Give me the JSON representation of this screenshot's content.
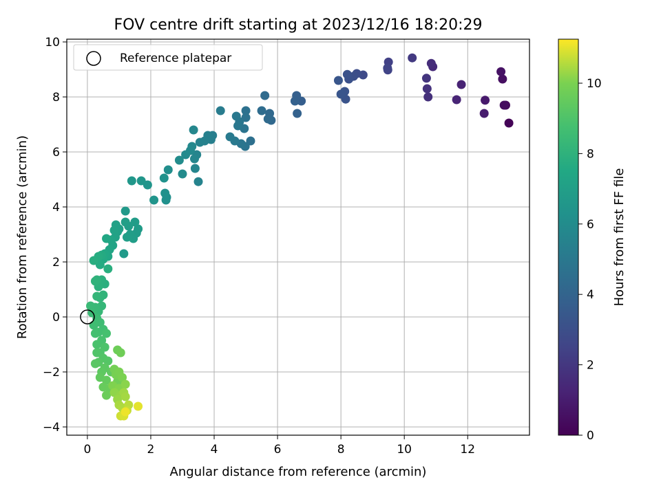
{
  "chart_data": {
    "type": "scatter",
    "title": "FOV centre drift starting at 2023/12/16 18:20:29",
    "xlabel": "Angular distance from reference (arcmin)",
    "ylabel": "Rotation from reference (arcmin)",
    "xlim": [
      -0.65,
      13.95
    ],
    "ylim": [
      -4.3,
      10.1
    ],
    "xticks": [
      0,
      2,
      4,
      6,
      8,
      10,
      12
    ],
    "yticks": [
      -4,
      -2,
      0,
      2,
      4,
      6,
      8,
      10
    ],
    "grid": true,
    "legend": {
      "position": "top-left",
      "entries": [
        "Reference platepar"
      ]
    },
    "reference_point": {
      "x": 0,
      "y": 0
    },
    "colorbar": {
      "label": "Hours from first FF file",
      "colormap": "viridis",
      "range": [
        0,
        11.25
      ],
      "ticks": [
        0,
        2,
        4,
        6,
        8,
        10
      ]
    },
    "points": [
      {
        "x": 13.3,
        "y": 7.05,
        "c": 0.1
      },
      {
        "x": 13.2,
        "y": 7.7,
        "c": 0.3
      },
      {
        "x": 13.15,
        "y": 7.7,
        "c": 0.4
      },
      {
        "x": 13.1,
        "y": 8.65,
        "c": 0.5
      },
      {
        "x": 13.05,
        "y": 8.92,
        "c": 0.6
      },
      {
        "x": 12.55,
        "y": 7.88,
        "c": 0.9
      },
      {
        "x": 12.52,
        "y": 7.4,
        "c": 1.0
      },
      {
        "x": 11.8,
        "y": 8.45,
        "c": 1.2
      },
      {
        "x": 11.65,
        "y": 7.9,
        "c": 1.3
      },
      {
        "x": 10.9,
        "y": 9.1,
        "c": 1.5
      },
      {
        "x": 10.85,
        "y": 9.22,
        "c": 1.6
      },
      {
        "x": 10.75,
        "y": 8.0,
        "c": 1.7
      },
      {
        "x": 10.72,
        "y": 8.3,
        "c": 1.8
      },
      {
        "x": 10.7,
        "y": 8.68,
        "c": 1.9
      },
      {
        "x": 10.25,
        "y": 9.42,
        "c": 2.1
      },
      {
        "x": 9.5,
        "y": 9.27,
        "c": 2.4
      },
      {
        "x": 9.48,
        "y": 8.98,
        "c": 2.5
      },
      {
        "x": 9.47,
        "y": 9.05,
        "c": 2.55
      },
      {
        "x": 8.7,
        "y": 8.8,
        "c": 2.8
      },
      {
        "x": 8.5,
        "y": 8.85,
        "c": 2.9
      },
      {
        "x": 8.4,
        "y": 8.75,
        "c": 3.0
      },
      {
        "x": 8.25,
        "y": 8.65,
        "c": 3.1
      },
      {
        "x": 8.2,
        "y": 8.82,
        "c": 3.15
      },
      {
        "x": 8.15,
        "y": 7.92,
        "c": 3.2
      },
      {
        "x": 8.12,
        "y": 8.2,
        "c": 3.25
      },
      {
        "x": 8.0,
        "y": 8.1,
        "c": 3.3
      },
      {
        "x": 7.92,
        "y": 8.6,
        "c": 3.35
      },
      {
        "x": 6.75,
        "y": 7.85,
        "c": 3.7
      },
      {
        "x": 6.6,
        "y": 8.05,
        "c": 3.8
      },
      {
        "x": 6.55,
        "y": 7.85,
        "c": 3.85
      },
      {
        "x": 6.62,
        "y": 7.4,
        "c": 3.9
      },
      {
        "x": 5.8,
        "y": 7.15,
        "c": 4.2
      },
      {
        "x": 5.75,
        "y": 7.4,
        "c": 4.25
      },
      {
        "x": 5.7,
        "y": 7.2,
        "c": 4.3
      },
      {
        "x": 5.6,
        "y": 8.05,
        "c": 4.35
      },
      {
        "x": 5.5,
        "y": 7.5,
        "c": 4.4
      },
      {
        "x": 5.15,
        "y": 6.4,
        "c": 4.6
      },
      {
        "x": 5.0,
        "y": 7.5,
        "c": 4.65
      },
      {
        "x": 5.0,
        "y": 7.25,
        "c": 4.7
      },
      {
        "x": 4.98,
        "y": 6.2,
        "c": 4.75
      },
      {
        "x": 4.95,
        "y": 6.85,
        "c": 4.8
      },
      {
        "x": 4.85,
        "y": 6.3,
        "c": 4.85
      },
      {
        "x": 4.8,
        "y": 7.1,
        "c": 4.9
      },
      {
        "x": 4.75,
        "y": 6.95,
        "c": 4.95
      },
      {
        "x": 4.7,
        "y": 7.3,
        "c": 5.0
      },
      {
        "x": 4.65,
        "y": 6.4,
        "c": 5.05
      },
      {
        "x": 4.5,
        "y": 6.55,
        "c": 5.1
      },
      {
        "x": 4.2,
        "y": 7.5,
        "c": 5.2
      },
      {
        "x": 3.95,
        "y": 6.6,
        "c": 5.3
      },
      {
        "x": 3.9,
        "y": 6.45,
        "c": 5.35
      },
      {
        "x": 3.8,
        "y": 6.6,
        "c": 5.4
      },
      {
        "x": 3.7,
        "y": 6.4,
        "c": 5.45
      },
      {
        "x": 3.55,
        "y": 6.35,
        "c": 5.5
      },
      {
        "x": 3.5,
        "y": 4.92,
        "c": 5.55
      },
      {
        "x": 3.45,
        "y": 5.9,
        "c": 5.6
      },
      {
        "x": 3.4,
        "y": 5.4,
        "c": 5.65
      },
      {
        "x": 3.38,
        "y": 5.75,
        "c": 5.7
      },
      {
        "x": 3.35,
        "y": 6.8,
        "c": 5.75
      },
      {
        "x": 3.3,
        "y": 6.2,
        "c": 5.8
      },
      {
        "x": 3.25,
        "y": 6.05,
        "c": 5.85
      },
      {
        "x": 3.1,
        "y": 5.9,
        "c": 5.9
      },
      {
        "x": 3.0,
        "y": 5.2,
        "c": 5.95
      },
      {
        "x": 2.9,
        "y": 5.7,
        "c": 6.0
      },
      {
        "x": 2.55,
        "y": 5.35,
        "c": 6.1
      },
      {
        "x": 2.5,
        "y": 4.35,
        "c": 6.15
      },
      {
        "x": 2.48,
        "y": 4.25,
        "c": 6.2
      },
      {
        "x": 2.45,
        "y": 4.5,
        "c": 6.25
      },
      {
        "x": 2.42,
        "y": 5.05,
        "c": 6.3
      },
      {
        "x": 2.1,
        "y": 4.25,
        "c": 6.4
      },
      {
        "x": 1.9,
        "y": 4.8,
        "c": 6.45
      },
      {
        "x": 1.7,
        "y": 4.95,
        "c": 6.5
      },
      {
        "x": 1.4,
        "y": 4.95,
        "c": 6.6
      },
      {
        "x": 1.2,
        "y": 3.85,
        "c": 6.7
      },
      {
        "x": 1.15,
        "y": 2.3,
        "c": 6.75
      },
      {
        "x": 1.6,
        "y": 3.2,
        "c": 6.8
      },
      {
        "x": 1.55,
        "y": 3.05,
        "c": 6.82
      },
      {
        "x": 1.5,
        "y": 3.45,
        "c": 6.85
      },
      {
        "x": 1.45,
        "y": 2.85,
        "c": 6.88
      },
      {
        "x": 1.35,
        "y": 3.0,
        "c": 6.9
      },
      {
        "x": 1.3,
        "y": 3.3,
        "c": 6.92
      },
      {
        "x": 1.25,
        "y": 2.9,
        "c": 6.95
      },
      {
        "x": 1.2,
        "y": 3.45,
        "c": 6.97
      },
      {
        "x": 1.0,
        "y": 3.2,
        "c": 7.0
      },
      {
        "x": 0.95,
        "y": 3.1,
        "c": 7.05
      },
      {
        "x": 0.9,
        "y": 3.35,
        "c": 7.1
      },
      {
        "x": 0.88,
        "y": 2.9,
        "c": 7.15
      },
      {
        "x": 0.85,
        "y": 3.15,
        "c": 7.2
      },
      {
        "x": 0.8,
        "y": 2.6,
        "c": 7.25
      },
      {
        "x": 0.75,
        "y": 2.8,
        "c": 7.3
      },
      {
        "x": 0.7,
        "y": 2.45,
        "c": 7.35
      },
      {
        "x": 0.65,
        "y": 2.2,
        "c": 7.4
      },
      {
        "x": 0.6,
        "y": 2.85,
        "c": 7.45
      },
      {
        "x": 0.55,
        "y": 2.3,
        "c": 7.5
      },
      {
        "x": 0.5,
        "y": 2.1,
        "c": 7.55
      },
      {
        "x": 0.45,
        "y": 2.25,
        "c": 7.6
      },
      {
        "x": 0.4,
        "y": 1.9,
        "c": 7.65
      },
      {
        "x": 0.35,
        "y": 2.2,
        "c": 7.7
      },
      {
        "x": 0.2,
        "y": 2.05,
        "c": 7.75
      },
      {
        "x": 0.65,
        "y": 1.75,
        "c": 7.8
      },
      {
        "x": 0.55,
        "y": 1.2,
        "c": 7.85
      },
      {
        "x": 0.45,
        "y": 1.35,
        "c": 7.9
      },
      {
        "x": 0.35,
        "y": 1.1,
        "c": 7.95
      },
      {
        "x": 0.3,
        "y": 1.35,
        "c": 8.0
      },
      {
        "x": 0.25,
        "y": 1.3,
        "c": 8.05
      },
      {
        "x": 0.5,
        "y": 0.8,
        "c": 8.1
      },
      {
        "x": 0.4,
        "y": 0.7,
        "c": 8.15
      },
      {
        "x": 0.3,
        "y": 0.75,
        "c": 8.2
      },
      {
        "x": 0.45,
        "y": 0.4,
        "c": 8.25
      },
      {
        "x": 0.35,
        "y": 0.2,
        "c": 8.3
      },
      {
        "x": 0.25,
        "y": 0.35,
        "c": 8.35
      },
      {
        "x": 0.1,
        "y": 0.4,
        "c": 8.4
      },
      {
        "x": 0.15,
        "y": 0.15,
        "c": 8.45
      },
      {
        "x": 0.3,
        "y": -0.05,
        "c": 8.5
      },
      {
        "x": 0.4,
        "y": -0.2,
        "c": 8.55
      },
      {
        "x": 0.2,
        "y": -0.3,
        "c": 8.6
      },
      {
        "x": 0.5,
        "y": -0.45,
        "c": 8.65
      },
      {
        "x": 0.35,
        "y": -0.55,
        "c": 8.7
      },
      {
        "x": 0.25,
        "y": -0.6,
        "c": 8.75
      },
      {
        "x": 0.6,
        "y": -0.6,
        "c": 8.8
      },
      {
        "x": 0.45,
        "y": -0.85,
        "c": 8.85
      },
      {
        "x": 0.3,
        "y": -1.0,
        "c": 8.9
      },
      {
        "x": 0.55,
        "y": -1.1,
        "c": 8.95
      },
      {
        "x": 0.4,
        "y": -1.3,
        "c": 9.0
      },
      {
        "x": 0.3,
        "y": -1.3,
        "c": 9.05
      },
      {
        "x": 0.5,
        "y": -1.5,
        "c": 9.1
      },
      {
        "x": 0.65,
        "y": -1.6,
        "c": 9.15
      },
      {
        "x": 0.35,
        "y": -1.65,
        "c": 9.2
      },
      {
        "x": 0.25,
        "y": -1.7,
        "c": 9.25
      },
      {
        "x": 0.55,
        "y": -1.85,
        "c": 9.3
      },
      {
        "x": 0.45,
        "y": -2.0,
        "c": 9.35
      },
      {
        "x": 0.75,
        "y": -2.0,
        "c": 9.4
      },
      {
        "x": 0.4,
        "y": -2.2,
        "c": 9.45
      },
      {
        "x": 0.6,
        "y": -2.3,
        "c": 9.5
      },
      {
        "x": 0.5,
        "y": -2.55,
        "c": 9.55
      },
      {
        "x": 0.7,
        "y": -2.6,
        "c": 9.6
      },
      {
        "x": 0.6,
        "y": -2.85,
        "c": 9.65
      },
      {
        "x": 0.95,
        "y": -1.2,
        "c": 9.7
      },
      {
        "x": 1.05,
        "y": -1.3,
        "c": 9.75
      },
      {
        "x": 0.95,
        "y": -2.35,
        "c": 9.8
      },
      {
        "x": 0.85,
        "y": -1.9,
        "c": 9.85
      },
      {
        "x": 0.9,
        "y": -2.1,
        "c": 9.9
      },
      {
        "x": 1.0,
        "y": -2.0,
        "c": 9.95
      },
      {
        "x": 1.1,
        "y": -2.2,
        "c": 10.0
      },
      {
        "x": 0.8,
        "y": -2.5,
        "c": 10.05
      },
      {
        "x": 1.0,
        "y": -2.6,
        "c": 10.1
      },
      {
        "x": 1.2,
        "y": -2.45,
        "c": 10.15
      },
      {
        "x": 0.85,
        "y": -2.75,
        "c": 10.2
      },
      {
        "x": 1.05,
        "y": -2.85,
        "c": 10.25
      },
      {
        "x": 0.95,
        "y": -3.0,
        "c": 10.3
      },
      {
        "x": 1.15,
        "y": -2.75,
        "c": 10.35
      },
      {
        "x": 1.2,
        "y": -2.9,
        "c": 10.4
      },
      {
        "x": 1.0,
        "y": -3.2,
        "c": 10.45
      },
      {
        "x": 1.1,
        "y": -3.3,
        "c": 10.5
      },
      {
        "x": 1.3,
        "y": -3.2,
        "c": 10.6
      },
      {
        "x": 1.25,
        "y": -3.4,
        "c": 10.7
      },
      {
        "x": 1.05,
        "y": -3.6,
        "c": 10.8
      },
      {
        "x": 1.15,
        "y": -3.6,
        "c": 10.9
      },
      {
        "x": 1.6,
        "y": -3.25,
        "c": 11.0
      },
      {
        "x": 1.2,
        "y": -3.45,
        "c": 11.1
      }
    ]
  }
}
